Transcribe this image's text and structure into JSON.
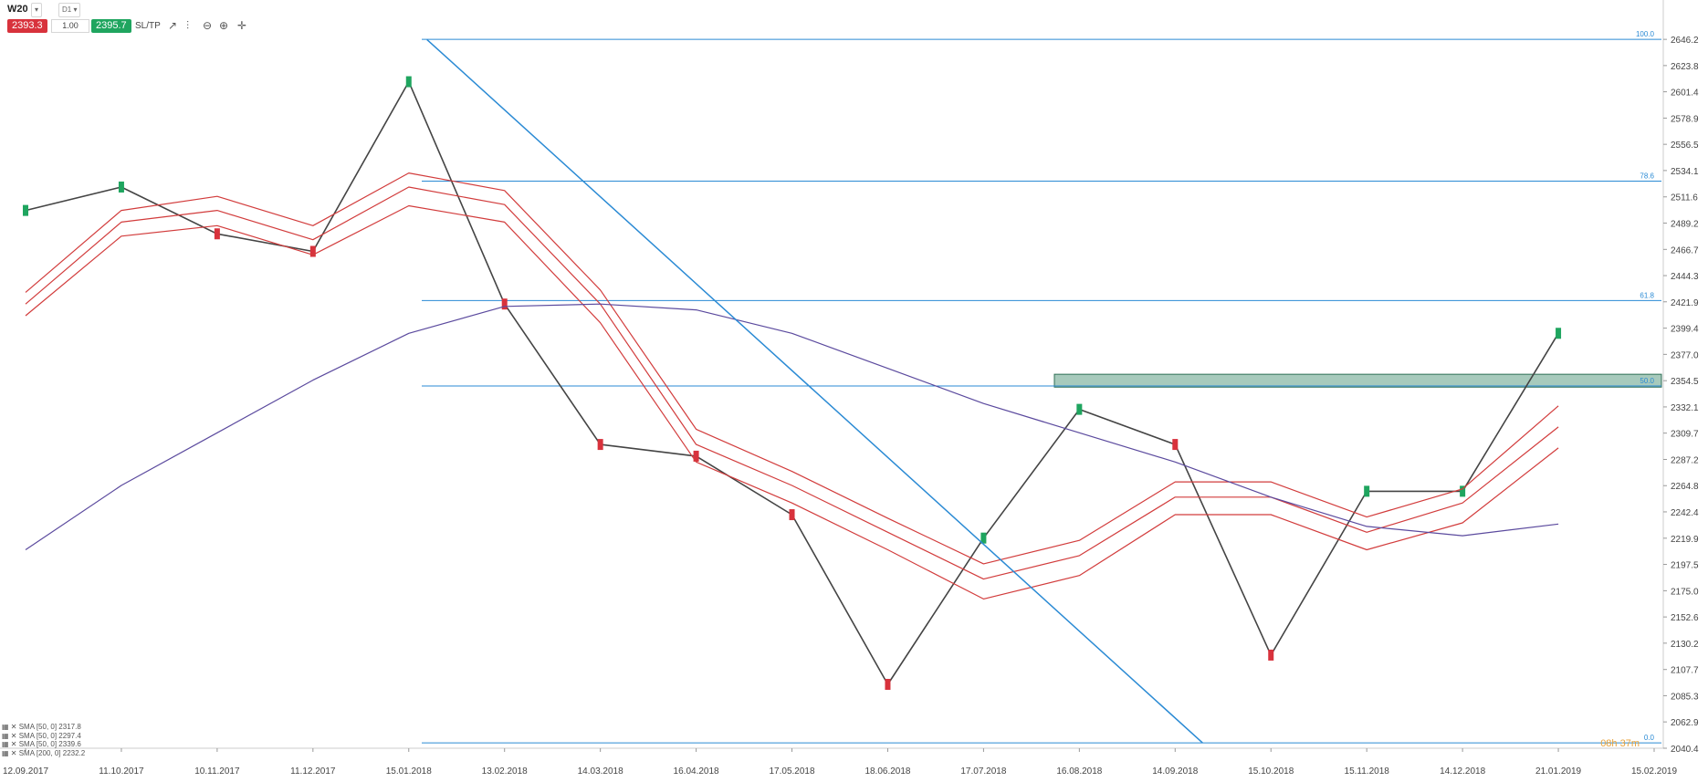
{
  "toolbar": {
    "symbol": "W20",
    "symbol_dropdown": "",
    "timeframe": "D1",
    "sell_price": "2393.3",
    "volume": "1.00",
    "buy_price": "2395.7",
    "sltp_label": "SL/TP",
    "colors": {
      "sell": "#d8323c",
      "buy": "#1fa55f"
    },
    "icons": [
      "line-chart-icon",
      "indicators-icon",
      "zoom-out-icon",
      "zoom-in-icon",
      "crosshair-icon"
    ]
  },
  "legend": [
    "SMA [50, 0] 2317.8",
    "SMA [50, 0] 2297.4",
    "SMA [50, 0] 2339.6",
    "SMA [200, 0] 2232.2"
  ],
  "countdown": "08h 37m",
  "chart_data": {
    "type": "line",
    "title": "",
    "xlabel": "",
    "ylabel": "",
    "ylim": [
      2040.4,
      2658
    ],
    "y_ticks": [
      "2646.2",
      "2623.8",
      "2601.4",
      "2578.9",
      "2556.5",
      "2534.1",
      "2511.6",
      "2489.2",
      "2466.7",
      "2444.3",
      "2421.9",
      "2399.4",
      "2377.0",
      "2354.5",
      "2332.1",
      "2309.7",
      "2287.2",
      "2264.8",
      "2242.4",
      "2219.9",
      "2197.5",
      "2175.0",
      "2152.6",
      "2130.2",
      "2107.7",
      "2085.3",
      "2062.9",
      "2040.4"
    ],
    "x_ticks": [
      "12.09.2017",
      "11.10.2017",
      "10.11.2017",
      "11.12.2017",
      "15.01.2018",
      "13.02.2018",
      "14.03.2018",
      "16.04.2018",
      "17.05.2018",
      "18.06.2018",
      "17.07.2018",
      "16.08.2018",
      "14.09.2018",
      "15.10.2018",
      "15.11.2018",
      "14.12.2018",
      "21.01.2019",
      "15.02.2019"
    ],
    "fibonacci": [
      {
        "label": "100.0",
        "value": 2646.2
      },
      {
        "label": "78.6",
        "value": 2525.0
      },
      {
        "label": "61.8",
        "value": 2423.0
      },
      {
        "label": "50.0",
        "value": 2350.0
      },
      {
        "label": "0.0",
        "value": 2045.0
      }
    ],
    "resistance_zone": [
      2349,
      2360
    ],
    "trendline": {
      "from": [
        "15.01.2018",
        2646
      ],
      "to": [
        "14.09.2018",
        2045
      ]
    },
    "series": [
      {
        "x": [
          "12.09.2017",
          "11.10.2017",
          "10.11.2017",
          "11.12.2017",
          "15.01.2018",
          "13.02.2018",
          "14.03.2018",
          "16.04.2018",
          "17.05.2018",
          "18.06.2018",
          "17.07.2018",
          "16.08.2018",
          "14.09.2018",
          "15.10.2018",
          "15.11.2018",
          "14.12.2018",
          "21.01.2019"
        ],
        "values": [
          2500,
          2520,
          2480,
          2465,
          2610,
          2420,
          2300,
          2290,
          2240,
          2095,
          2220,
          2330,
          2300,
          2120,
          2260,
          2260,
          2395
        ],
        "color": "#444444"
      },
      {
        "x": [
          "12.09.2017",
          "11.10.2017",
          "10.11.2017",
          "11.12.2017",
          "15.01.2018",
          "13.02.2018",
          "14.03.2018",
          "16.04.2018",
          "17.05.2018",
          "18.06.2018",
          "17.07.2018",
          "16.08.2018",
          "14.09.2018",
          "15.10.2018",
          "15.11.2018",
          "14.12.2018",
          "21.01.2019"
        ],
        "values": [
          2420,
          2490,
          2500,
          2475,
          2520,
          2505,
          2420,
          2300,
          2265,
          2225,
          2185,
          2205,
          2255,
          2255,
          2225,
          2250,
          2315
        ],
        "color": "#d23c3c"
      },
      {
        "x": [
          "12.09.2017",
          "11.10.2017",
          "10.11.2017",
          "11.12.2017",
          "15.01.2018",
          "13.02.2018",
          "14.03.2018",
          "16.04.2018",
          "17.05.2018",
          "18.06.2018",
          "17.07.2018",
          "16.08.2018",
          "14.09.2018",
          "15.10.2018",
          "15.11.2018",
          "14.12.2018",
          "21.01.2019"
        ],
        "values": [
          2410,
          2478,
          2487,
          2462,
          2504,
          2490,
          2404,
          2285,
          2250,
          2210,
          2168,
          2188,
          2240,
          2240,
          2210,
          2233,
          2297
        ],
        "color": "#d23c3c"
      },
      {
        "x": [
          "12.09.2017",
          "11.10.2017",
          "10.11.2017",
          "11.12.2017",
          "15.01.2018",
          "13.02.2018",
          "14.03.2018",
          "16.04.2018",
          "17.05.2018",
          "18.06.2018",
          "17.07.2018",
          "16.08.2018",
          "14.09.2018",
          "15.10.2018",
          "15.11.2018",
          "14.12.2018",
          "21.01.2019"
        ],
        "values": [
          2430,
          2500,
          2512,
          2487,
          2532,
          2517,
          2432,
          2313,
          2277,
          2237,
          2198,
          2218,
          2268,
          2268,
          2238,
          2262,
          2333
        ],
        "color": "#d23c3c"
      },
      {
        "x": [
          "12.09.2017",
          "11.10.2017",
          "10.11.2017",
          "11.12.2017",
          "15.01.2018",
          "13.02.2018",
          "14.03.2018",
          "16.04.2018",
          "17.05.2018",
          "18.06.2018",
          "17.07.2018",
          "16.08.2018",
          "14.09.2018",
          "15.10.2018",
          "15.11.2018",
          "14.12.2018",
          "21.01.2019"
        ],
        "values": [
          2210,
          2265,
          2310,
          2355,
          2395,
          2418,
          2420,
          2415,
          2395,
          2365,
          2335,
          2310,
          2285,
          2255,
          2230,
          2222,
          2232
        ],
        "color": "#5b4a9e"
      }
    ],
    "grid": false,
    "legend_position": "bottom-left"
  }
}
